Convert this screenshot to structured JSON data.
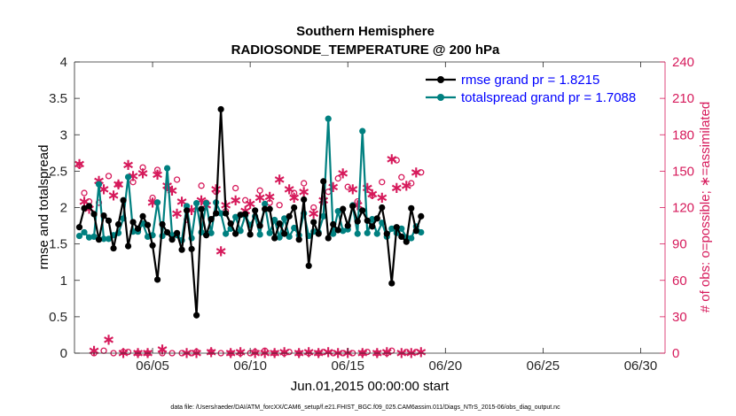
{
  "chart_data": {
    "type": "line",
    "title_line1": "Southern Hemisphere",
    "title_line2": "RADIOSONDE_TEMPERATURE @ 200 hPa",
    "xlabel": "Jun.01,2015 00:00:00 start",
    "ylabel_left": "rmse and totalspread",
    "ylabel_right": "# of obs: o=possible; ∗=assimilated",
    "footnote": "data file: /Users/raeder/DAI/ATM_forcXX/CAM6_setup/f.e21.FHIST_BGC.f09_025.CAM6assim.011/Diags_NTrS_2015-06/obs_diag_output.nc",
    "xlim": [
      1.0,
      31.25
    ],
    "ylim_left": [
      0,
      4
    ],
    "ylim_right": [
      0,
      240
    ],
    "x_ticks": [
      5,
      10,
      15,
      20,
      25,
      30
    ],
    "x_tick_labels": [
      "06/05",
      "06/10",
      "06/15",
      "06/20",
      "06/25",
      "06/30"
    ],
    "y_left_ticks": [
      0,
      0.5,
      1,
      1.5,
      2,
      2.5,
      3,
      3.5,
      4
    ],
    "y_left_tick_labels": [
      "0",
      "0.5",
      "1",
      "1.5",
      "2",
      "2.5",
      "3",
      "3.5",
      "4"
    ],
    "y_right_ticks": [
      0,
      30,
      60,
      90,
      120,
      150,
      180,
      210,
      240
    ],
    "y_right_tick_labels": [
      "0",
      "30",
      "60",
      "90",
      "120",
      "150",
      "180",
      "210",
      "240"
    ],
    "colors": {
      "rmse": "#000000",
      "spread": "#008080",
      "obs": "#d61a5b"
    },
    "legend": [
      {
        "name": "rmse grand pr = 1.8215",
        "color": "#000000"
      },
      {
        "name": "totalspread grand pr = 1.7088",
        "color": "#008080"
      }
    ],
    "t_start": 1.25,
    "t_step": 0.25,
    "series": [
      {
        "name": "rmse",
        "values": [
          1.73,
          1.99,
          2.02,
          1.91,
          1.56,
          1.89,
          1.82,
          1.44,
          1.77,
          2.1,
          1.47,
          1.8,
          1.71,
          1.88,
          1.76,
          1.48,
          1.01,
          1.77,
          1.66,
          1.56,
          1.65,
          1.42,
          1.96,
          1.43,
          0.52,
          1.98,
          1.62,
          1.84,
          1.92,
          3.35,
          1.92,
          1.78,
          1.64,
          1.9,
          1.91,
          1.63,
          1.96,
          1.75,
          1.98,
          1.98,
          1.58,
          1.78,
          1.64,
          1.88,
          2.0,
          1.56,
          2.11,
          1.2,
          1.8,
          1.64,
          2.36,
          1.58,
          1.77,
          1.69,
          1.98,
          1.75,
          2.02,
          1.81,
          1.96,
          1.82,
          1.74,
          1.85,
          2.0,
          1.64,
          0.96,
          1.73,
          1.6,
          1.53,
          1.99,
          1.68,
          1.88
        ]
      },
      {
        "name": "totalspread",
        "values": [
          1.61,
          1.66,
          1.59,
          1.6,
          2.32,
          1.57,
          1.57,
          1.62,
          1.65,
          1.85,
          2.42,
          1.67,
          1.67,
          1.78,
          1.6,
          1.62,
          2.07,
          1.61,
          2.54,
          1.62,
          1.62,
          1.55,
          2.02,
          1.58,
          2.06,
          1.66,
          2.06,
          1.65,
          2.07,
          1.92,
          1.64,
          1.71,
          1.87,
          1.68,
          1.89,
          1.76,
          1.88,
          1.63,
          2.05,
          1.65,
          1.83,
          1.59,
          1.85,
          1.6,
          1.72,
          1.62,
          1.92,
          1.61,
          1.67,
          1.66,
          1.88,
          3.22,
          1.64,
          1.95,
          1.68,
          1.7,
          2.03,
          1.64,
          3.05,
          1.65,
          1.84,
          1.64,
          1.79,
          1.6,
          1.71,
          1.65,
          1.71,
          1.59,
          1.58,
          1.74,
          1.66
        ]
      }
    ],
    "obs_possible": [
      155,
      132,
      125,
      0,
      124,
      2,
      146,
      0,
      139,
      1,
      1,
      141,
      0,
      153,
      0,
      128,
      151,
      0,
      136,
      0,
      143,
      0,
      110,
      0,
      1,
      138,
      124,
      1,
      133,
      0,
      117,
      0,
      136,
      0,
      126,
      0,
      1,
      134,
      2,
      124,
      0,
      122,
      0,
      1,
      132,
      0,
      140,
      0,
      120,
      0,
      1,
      133,
      0,
      144,
      0,
      137,
      0,
      125,
      0,
      1,
      130,
      0,
      141,
      0,
      2,
      159,
      145,
      1,
      140,
      1,
      149
    ],
    "obs_assimilated": [
      157,
      126,
      120,
      3,
      143,
      136,
      12,
      131,
      140,
      1,
      156,
      147,
      1,
      149,
      1,
      125,
      148,
      4,
      139,
      135,
      116,
      126,
      1,
      119,
      1,
      127,
      123,
      2,
      136,
      85,
      123,
      1,
      127,
      2,
      118,
      124,
      1,
      129,
      1,
      130,
      1,
      144,
      2,
      136,
      129,
      1,
      134,
      2,
      116,
      1,
      127,
      2,
      138,
      1,
      149,
      1,
      136,
      123,
      1,
      137,
      132,
      1,
      129,
      2,
      161,
      137,
      1,
      139,
      1,
      150,
      2
    ]
  }
}
